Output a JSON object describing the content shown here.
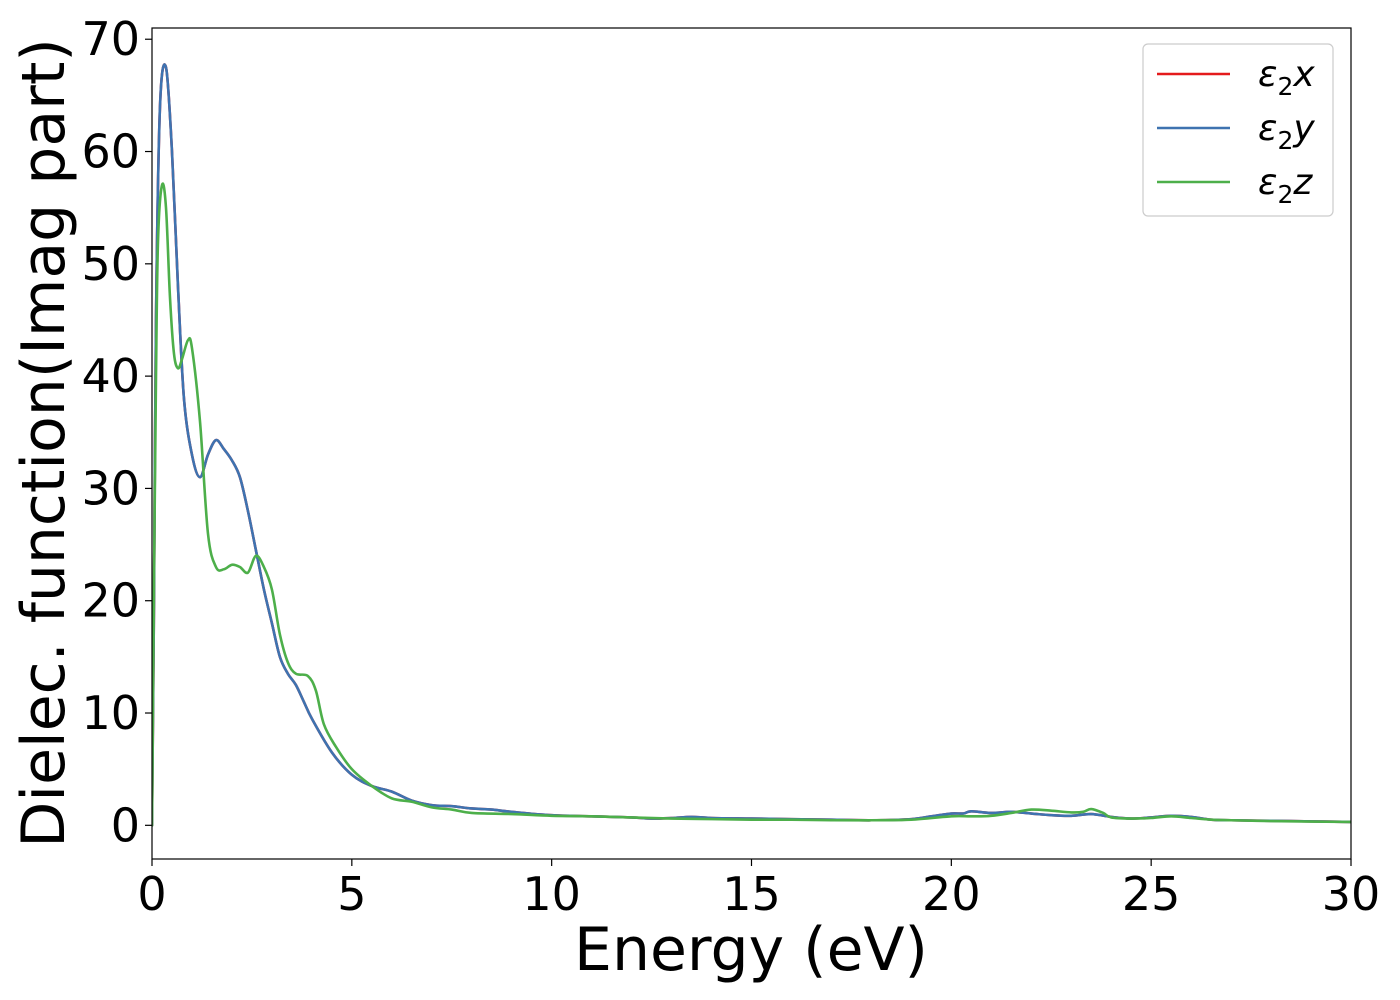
{
  "chart_data": {
    "type": "line",
    "title": "",
    "xlabel": "Energy (eV)",
    "ylabel": "Dielec. function(Imag part)",
    "xlim": [
      0,
      30
    ],
    "ylim": [
      -3,
      71
    ],
    "xticks": [
      0,
      5,
      10,
      15,
      20,
      25,
      30
    ],
    "yticks": [
      0,
      10,
      20,
      30,
      40,
      50,
      60,
      70
    ],
    "grid": false,
    "legend_position": "top-right",
    "series": [
      {
        "name": "ε2x",
        "label_main": "ε",
        "label_sub": "2",
        "label_var": "x",
        "color": "#e41a1c",
        "points": [
          [
            0,
            0
          ],
          [
            0.05,
            20
          ],
          [
            0.1,
            45
          ],
          [
            0.2,
            64
          ],
          [
            0.35,
            67.5
          ],
          [
            0.5,
            60
          ],
          [
            0.65,
            48
          ],
          [
            0.8,
            38
          ],
          [
            1.0,
            33
          ],
          [
            1.2,
            31
          ],
          [
            1.4,
            33
          ],
          [
            1.6,
            34.3
          ],
          [
            1.8,
            33.5
          ],
          [
            2.0,
            32.5
          ],
          [
            2.2,
            31
          ],
          [
            2.4,
            28
          ],
          [
            2.6,
            24.5
          ],
          [
            2.8,
            21
          ],
          [
            3.0,
            18
          ],
          [
            3.2,
            15
          ],
          [
            3.4,
            13.5
          ],
          [
            3.6,
            12.5
          ],
          [
            3.8,
            11
          ],
          [
            4.0,
            9.5
          ],
          [
            4.5,
            6.5
          ],
          [
            5.0,
            4.5
          ],
          [
            5.5,
            3.5
          ],
          [
            6.0,
            3.0
          ],
          [
            6.5,
            2.2
          ],
          [
            7.0,
            1.8
          ],
          [
            7.5,
            1.7
          ],
          [
            8.0,
            1.5
          ],
          [
            8.5,
            1.4
          ],
          [
            9.0,
            1.2
          ],
          [
            10.0,
            0.9
          ],
          [
            11.0,
            0.8
          ],
          [
            12.0,
            0.7
          ],
          [
            12.5,
            0.6
          ],
          [
            13.0,
            0.65
          ],
          [
            13.5,
            0.75
          ],
          [
            14.0,
            0.65
          ],
          [
            15.0,
            0.6
          ],
          [
            16.0,
            0.55
          ],
          [
            17.0,
            0.5
          ],
          [
            18.0,
            0.45
          ],
          [
            19.0,
            0.55
          ],
          [
            19.5,
            0.8
          ],
          [
            20.0,
            1.05
          ],
          [
            20.3,
            1.05
          ],
          [
            20.5,
            1.25
          ],
          [
            21.0,
            1.1
          ],
          [
            21.5,
            1.2
          ],
          [
            22.0,
            1.05
          ],
          [
            22.5,
            0.9
          ],
          [
            23.0,
            0.85
          ],
          [
            23.5,
            1.0
          ],
          [
            24.0,
            0.75
          ],
          [
            24.5,
            0.6
          ],
          [
            25.0,
            0.7
          ],
          [
            25.5,
            0.85
          ],
          [
            26.0,
            0.75
          ],
          [
            26.5,
            0.5
          ],
          [
            27.0,
            0.45
          ],
          [
            28.0,
            0.4
          ],
          [
            29.0,
            0.35
          ],
          [
            30.0,
            0.3
          ]
        ]
      },
      {
        "name": "ε2y",
        "label_main": "ε",
        "label_sub": "2",
        "label_var": "y",
        "color": "#3e73b0",
        "points": [
          [
            0,
            0
          ],
          [
            0.05,
            20
          ],
          [
            0.1,
            45
          ],
          [
            0.2,
            64
          ],
          [
            0.35,
            67.5
          ],
          [
            0.5,
            60
          ],
          [
            0.65,
            48
          ],
          [
            0.8,
            38
          ],
          [
            1.0,
            33
          ],
          [
            1.2,
            31
          ],
          [
            1.4,
            33
          ],
          [
            1.6,
            34.3
          ],
          [
            1.8,
            33.5
          ],
          [
            2.0,
            32.5
          ],
          [
            2.2,
            31
          ],
          [
            2.4,
            28
          ],
          [
            2.6,
            24.5
          ],
          [
            2.8,
            21
          ],
          [
            3.0,
            18
          ],
          [
            3.2,
            15
          ],
          [
            3.4,
            13.5
          ],
          [
            3.6,
            12.5
          ],
          [
            3.8,
            11
          ],
          [
            4.0,
            9.5
          ],
          [
            4.5,
            6.5
          ],
          [
            5.0,
            4.5
          ],
          [
            5.5,
            3.5
          ],
          [
            6.0,
            3.0
          ],
          [
            6.5,
            2.2
          ],
          [
            7.0,
            1.8
          ],
          [
            7.5,
            1.7
          ],
          [
            8.0,
            1.5
          ],
          [
            8.5,
            1.4
          ],
          [
            9.0,
            1.2
          ],
          [
            10.0,
            0.9
          ],
          [
            11.0,
            0.8
          ],
          [
            12.0,
            0.7
          ],
          [
            12.5,
            0.6
          ],
          [
            13.0,
            0.65
          ],
          [
            13.5,
            0.75
          ],
          [
            14.0,
            0.65
          ],
          [
            15.0,
            0.6
          ],
          [
            16.0,
            0.55
          ],
          [
            17.0,
            0.5
          ],
          [
            18.0,
            0.45
          ],
          [
            19.0,
            0.55
          ],
          [
            19.5,
            0.8
          ],
          [
            20.0,
            1.05
          ],
          [
            20.3,
            1.05
          ],
          [
            20.5,
            1.25
          ],
          [
            21.0,
            1.1
          ],
          [
            21.5,
            1.2
          ],
          [
            22.0,
            1.05
          ],
          [
            22.5,
            0.9
          ],
          [
            23.0,
            0.85
          ],
          [
            23.5,
            1.0
          ],
          [
            24.0,
            0.75
          ],
          [
            24.5,
            0.6
          ],
          [
            25.0,
            0.7
          ],
          [
            25.5,
            0.85
          ],
          [
            26.0,
            0.75
          ],
          [
            26.5,
            0.5
          ],
          [
            27.0,
            0.45
          ],
          [
            28.0,
            0.4
          ],
          [
            29.0,
            0.35
          ],
          [
            30.0,
            0.3
          ]
        ]
      },
      {
        "name": "ε2z",
        "label_main": "ε",
        "label_sub": "2",
        "label_var": "z",
        "color": "#4daf4a",
        "points": [
          [
            0,
            0
          ],
          [
            0.05,
            22
          ],
          [
            0.1,
            40
          ],
          [
            0.15,
            52
          ],
          [
            0.25,
            57
          ],
          [
            0.35,
            55
          ],
          [
            0.45,
            47
          ],
          [
            0.55,
            42
          ],
          [
            0.65,
            40.7
          ],
          [
            0.75,
            41.5
          ],
          [
            0.9,
            43.2
          ],
          [
            1.0,
            42.5
          ],
          [
            1.2,
            36
          ],
          [
            1.4,
            26
          ],
          [
            1.6,
            23
          ],
          [
            1.8,
            22.8
          ],
          [
            2.0,
            23.2
          ],
          [
            2.2,
            23
          ],
          [
            2.4,
            22.5
          ],
          [
            2.6,
            24
          ],
          [
            2.8,
            23
          ],
          [
            3.0,
            21
          ],
          [
            3.2,
            17
          ],
          [
            3.4,
            14.5
          ],
          [
            3.6,
            13.5
          ],
          [
            3.9,
            13.3
          ],
          [
            4.1,
            12
          ],
          [
            4.3,
            9
          ],
          [
            4.6,
            7
          ],
          [
            5.0,
            5.0
          ],
          [
            5.5,
            3.5
          ],
          [
            6.0,
            2.4
          ],
          [
            6.5,
            2.1
          ],
          [
            7.0,
            1.6
          ],
          [
            7.5,
            1.4
          ],
          [
            8.0,
            1.1
          ],
          [
            9.0,
            1.0
          ],
          [
            10.0,
            0.85
          ],
          [
            11.0,
            0.8
          ],
          [
            12.0,
            0.7
          ],
          [
            13.0,
            0.6
          ],
          [
            14.0,
            0.55
          ],
          [
            15.0,
            0.5
          ],
          [
            16.0,
            0.5
          ],
          [
            17.0,
            0.45
          ],
          [
            18.0,
            0.45
          ],
          [
            19.0,
            0.5
          ],
          [
            20.0,
            0.8
          ],
          [
            20.5,
            0.8
          ],
          [
            21.0,
            0.85
          ],
          [
            21.5,
            1.1
          ],
          [
            22.0,
            1.4
          ],
          [
            22.5,
            1.3
          ],
          [
            23.0,
            1.15
          ],
          [
            23.3,
            1.2
          ],
          [
            23.5,
            1.45
          ],
          [
            23.8,
            1.1
          ],
          [
            24.0,
            0.7
          ],
          [
            24.5,
            0.6
          ],
          [
            25.0,
            0.65
          ],
          [
            25.5,
            0.8
          ],
          [
            26.0,
            0.65
          ],
          [
            26.5,
            0.5
          ],
          [
            27.0,
            0.45
          ],
          [
            28.0,
            0.38
          ],
          [
            29.0,
            0.33
          ],
          [
            30.0,
            0.3
          ]
        ]
      }
    ]
  }
}
